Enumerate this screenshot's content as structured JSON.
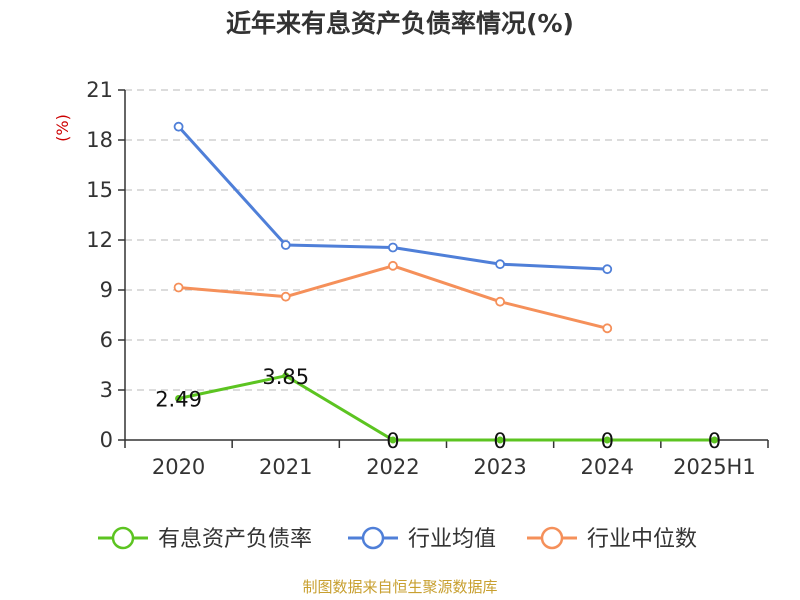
{
  "chart_data": {
    "type": "line",
    "title": "近年来有息资产负债率情况(%)",
    "ylabel": "(%)",
    "categories": [
      "2020",
      "2021",
      "2022",
      "2023",
      "2024",
      "2025H1"
    ],
    "ylim": [
      0,
      21
    ],
    "yticks": [
      "0",
      "3",
      "6",
      "9",
      "12",
      "15",
      "18",
      "21"
    ],
    "grid": true,
    "legend_position": "bottom",
    "series": [
      {
        "name": "有息资产负债率",
        "color": "#5cc421",
        "values": [
          2.49,
          3.85,
          0,
          0,
          0,
          0
        ],
        "labels": [
          "2.49",
          "3.85",
          "0",
          "0",
          "0",
          "0"
        ]
      },
      {
        "name": "行业均值",
        "color": "#4f7fd8",
        "values": [
          18.8,
          11.7,
          11.55,
          10.55,
          10.25,
          null
        ]
      },
      {
        "name": "行业中位数",
        "color": "#f5905a",
        "values": [
          9.15,
          8.6,
          10.45,
          8.3,
          6.7,
          null
        ]
      }
    ]
  },
  "source": "制图数据来自恒生聚源数据库"
}
